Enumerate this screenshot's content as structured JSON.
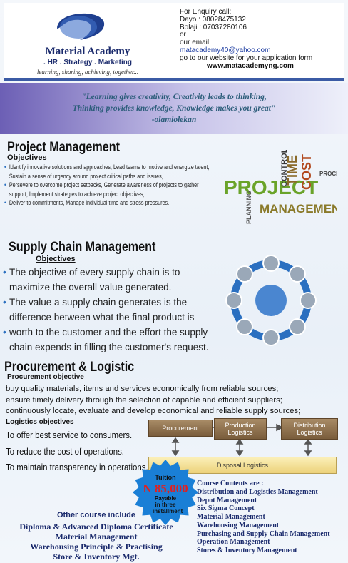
{
  "header": {
    "academy_name": "Material Academy",
    "tagline": ". HR . Strategy . Marketing",
    "motto": "learning, sharing, achieving, together...",
    "enquiry": [
      "For Enquiry call:",
      "Dayo : 08028475132",
      "Bolaji : 07037280106",
      "or",
      "our email",
      "matacademy40@yahoo.com",
      "go to our website for your application form",
      "www.matacademyng.com"
    ]
  },
  "quote": {
    "lines": [
      "\"Learning gives creativity, Creativity leads to thinking,",
      "Thinking provides knowledge, Knowledge makes you great\""
    ],
    "author": "-olamiolekan"
  },
  "project": {
    "title": "Project Management",
    "subtitle": "Objectives",
    "bullets": [
      "Identify innovative solutions and approaches, Lead teams to motive and energize talent, Sustain a sense of urgency around project critical paths and issues,",
      "Persevere to overcome project setbacks, Generate awareness of projects to gather support, Implement strategies to achieve project objectives,",
      "Deliver to commitments, Manage individual time and stress pressures."
    ],
    "cloud": [
      "PROJECT",
      "MANAGEMENT",
      "TIME",
      "COST",
      "CONTROL",
      "PLANNING",
      "PROCESS"
    ]
  },
  "supply": {
    "title": "Supply Chain Management",
    "subtitle": "Objectives",
    "bullets": [
      "The objective of every supply chain is to maximize the overall value generated.",
      "The value a supply chain generates is the  difference between what the final product is",
      "worth to the customer and the effort the supply chain expends in filling the customer's request."
    ]
  },
  "procurement": {
    "title": "Procurement & Logistic",
    "subtitle": "Procurement objective",
    "lines": [
      "buy quality materials, items and services economically from reliable sources;",
      "ensure timely delivery through the selection of capable and efficient  suppliers;",
      "continuously locate, evaluate and develop economical and reliable supply sources;"
    ],
    "logistics_heading": "Logistics objectives",
    "logistics": [
      "To offer best service to consumers.",
      "To reduce the cost of operations.",
      "To maintain transparency in operations."
    ],
    "flow": [
      "Procurement",
      "Production Logistics",
      "Distribution Logistics",
      "Disposal Logistics"
    ]
  },
  "tuition": {
    "label": "Tuition",
    "amount": "N 85,000",
    "note": "Payable in three installment"
  },
  "other": {
    "heading": "Other course include",
    "items": [
      "Diploma & Advanced Diploma Certificate",
      "Material Management",
      "Warehousing Principle & Practising",
      "Store & Inventory Mgt."
    ]
  },
  "contents": {
    "heading": "Course Contents are :",
    "items": [
      "Distribution and Logistics Management",
      "Depot Management",
      "Six Sigma Concept",
      "Material Management",
      "Warehousing Management",
      "Purchasing and Supply Chain Management",
      "Operation Management",
      "Stores & Inventory Management"
    ]
  }
}
